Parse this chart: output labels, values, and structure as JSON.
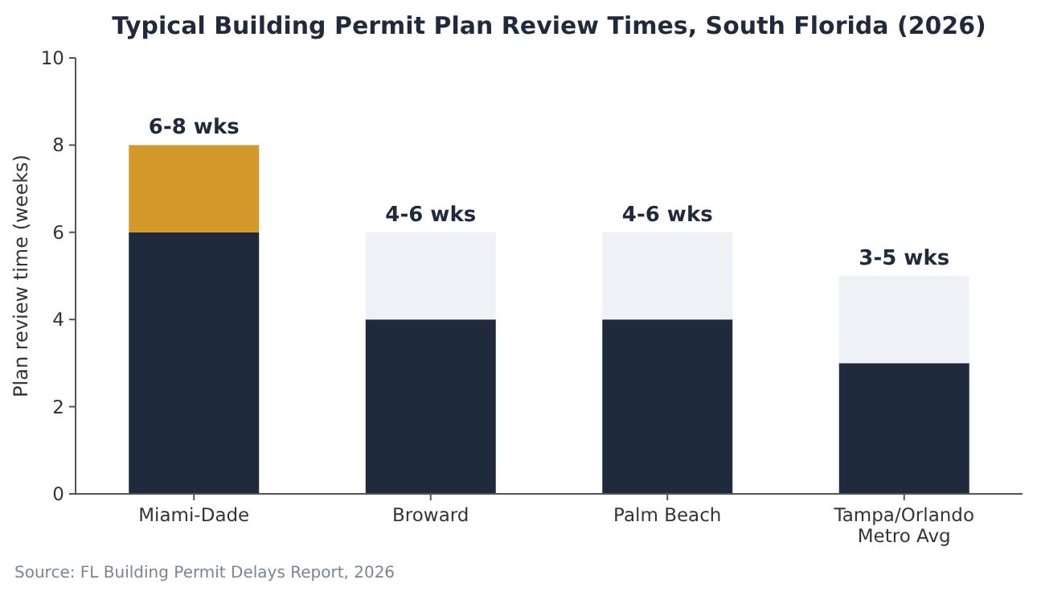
{
  "chart_data": {
    "type": "bar",
    "title": "Typical Building Permit Plan Review Times, South Florida (2026)",
    "ylabel": "Plan review time (weeks)",
    "categories": [
      "Miami-Dade",
      "Broward",
      "Palm Beach",
      "Tampa/Orlando Metro Avg"
    ],
    "stacked": true,
    "series": [
      {
        "color": "#1f2a3c",
        "values": [
          6,
          4,
          4,
          3
        ]
      },
      {
        "colors": [
          "#d4992a",
          "#eef1f5",
          "#eef1f5",
          "#eef1f5"
        ],
        "values": [
          2,
          2,
          2,
          2
        ]
      }
    ],
    "totals": [
      "6-8 wks",
      "4-6 wks",
      "4-6 wks",
      "3-5 wks"
    ],
    "ylim": [
      0,
      10
    ],
    "yticks": [
      0,
      2,
      4,
      6,
      8,
      10
    ],
    "grid": false,
    "annotations": [
      "Source: FL Building Permit Delays Report, 2026"
    ]
  }
}
